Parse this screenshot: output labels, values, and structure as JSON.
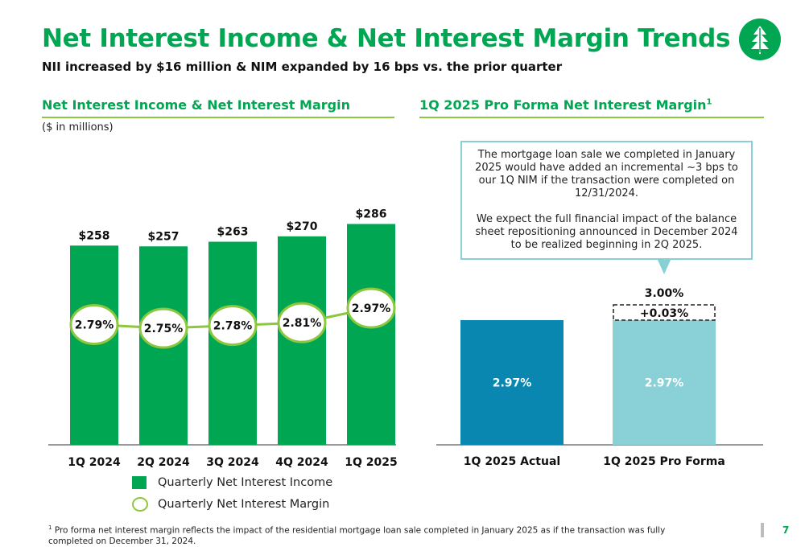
{
  "header": {
    "title": "Net Interest Income & Net Interest Margin Trends",
    "subtitle": "NII increased by $16 million & NIM expanded by 16 bps vs. the prior quarter"
  },
  "left_section": {
    "title": "Net Interest Income & Net Interest Margin",
    "units": "($ in millions)"
  },
  "right_section": {
    "title": "1Q 2025 Pro Forma Net Interest Margin",
    "title_sup": "1",
    "callout_p1": "The mortgage loan sale we completed in January 2025 would have added an incremental ~3 bps to our 1Q NIM if the transaction were completed on 12/31/2024.",
    "callout_p2": "We expect the full financial impact of the balance sheet repositioning announced in December 2024 to be realized beginning in 2Q 2025."
  },
  "legend": {
    "bar_label": "Quarterly Net Interest Income",
    "line_label": "Quarterly Net Interest Margin"
  },
  "footnote": {
    "sup": "1",
    "text": "Pro forma net interest margin reflects the impact of the residential mortgage loan sale completed in January 2025 as if the transaction was fully completed on December 31, 2024."
  },
  "page_number": "7",
  "colors": {
    "brand_green": "#00a651",
    "light_green": "#8dc63f",
    "dark_teal": "#0a87b0",
    "light_teal": "#8ad1d7"
  },
  "logo_icon": "tree-icon",
  "chart_data": [
    {
      "type": "bar",
      "categories": [
        "1Q 2024",
        "2Q 2024",
        "3Q 2024",
        "4Q 2024",
        "1Q 2025"
      ],
      "series": [
        {
          "name": "Quarterly Net Interest Income",
          "values": [
            258,
            257,
            263,
            270,
            286
          ],
          "labels": [
            "$258",
            "$257",
            "$263",
            "$270",
            "$286"
          ]
        },
        {
          "name": "Quarterly Net Interest Margin",
          "type": "line",
          "values": [
            2.79,
            2.75,
            2.78,
            2.81,
            2.97
          ],
          "labels": [
            "2.79%",
            "2.75%",
            "2.78%",
            "2.81%",
            "2.97%"
          ]
        }
      ]
    },
    {
      "type": "bar",
      "categories": [
        "1Q 2025 Actual",
        "1Q 2025 Pro Forma"
      ],
      "values": [
        2.97,
        2.97
      ],
      "labels": [
        "2.97%",
        "2.97%"
      ],
      "increment": {
        "value": 0.03,
        "label": "+0.03%"
      },
      "total_label": "3.00%"
    }
  ]
}
